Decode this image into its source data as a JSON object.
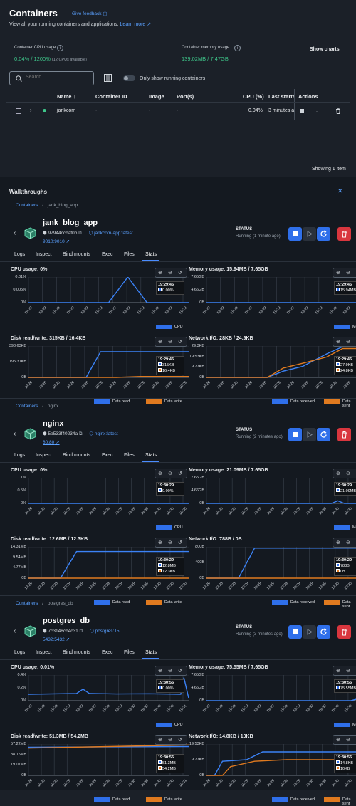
{
  "header": {
    "title": "Containers",
    "feedback": "Give feedback",
    "subtitle": "View all your running containers and applications.",
    "learn_more": "Learn more"
  },
  "cpu": {
    "label": "Container CPU usage",
    "value": "0.04% / 1200%",
    "note": "(12 CPUs available)"
  },
  "mem": {
    "label": "Container memory usage",
    "value": "139.02MB / 7.47GB"
  },
  "show_charts": "Show charts",
  "search": {
    "placeholder": "Search"
  },
  "toggle_label": "Only show running containers",
  "table": {
    "headers": [
      "Name",
      "Container ID",
      "Image",
      "Port(s)",
      "CPU (%)",
      "Last starte",
      "Actions"
    ],
    "rows": [
      {
        "name": "jankcom",
        "id": "-",
        "image": "-",
        "ports": "-",
        "cpu": "0.04%",
        "last": "3 minutes a"
      }
    ]
  },
  "showing": "Showing 1 item",
  "walkthroughs": "Walkthroughs",
  "tab_labels": [
    "Logs",
    "Inspect",
    "Bind mounts",
    "Exec",
    "Files",
    "Stats"
  ],
  "status_label": "STATUS",
  "containers": [
    {
      "crumb_root": "Containers",
      "crumb_sep": "/",
      "crumb_name": "jank_blog_app",
      "name": "jank_blog_app",
      "id": "97944ccbaf0b",
      "image": "jankcom-app:latest",
      "ports": "9010:9010",
      "status": "Running (1 minute ago)",
      "cpu": {
        "title": "CPU usage:  0%",
        "yticks": [
          "0.01%",
          "0.005%",
          "0%"
        ],
        "tip_time": "19:29:46",
        "tip_vals": [
          "0.00%"
        ],
        "legend": [
          "CPU"
        ]
      },
      "memory": {
        "title": "Memory usage:  15.94MB / 7.65GB",
        "yticks": [
          "7.65GB",
          "4.66GB",
          "0B"
        ],
        "tip_time": "19:29:46",
        "tip_vals": [
          "15.94MB"
        ],
        "legend": [
          "Memory"
        ]
      },
      "disk": {
        "title": "Disk read/write:  315KB / 16.4KB",
        "yticks": [
          "390.63KB",
          "195.31KB",
          "0B"
        ],
        "tip_time": "19:29:46",
        "tip_vals": [
          "315KB",
          "16.4KB"
        ],
        "legend": [
          "Data read",
          "Data write"
        ]
      },
      "net": {
        "title": "Network I/O:  28KB / 24.9KB",
        "yticks": [
          "29.3KB",
          "19.53KB",
          "9.77KB",
          "0B"
        ],
        "tip_time": "19:29:46",
        "tip_vals": [
          "27.9KB",
          "24.8KB"
        ],
        "legend": [
          "Data received",
          "Data sent"
        ]
      },
      "xticks": [
        "19:28",
        "19:28",
        "19:28",
        "19:28",
        "19:28",
        "19:29",
        "19:29",
        "19:29",
        "19:29",
        "19:29",
        "19:29",
        "19:29"
      ]
    },
    {
      "crumb_root": "Containers",
      "crumb_sep": "/",
      "crumb_name": "nginx",
      "name": "nginx",
      "id": "5a533f40234a",
      "image": "nginx:latest",
      "ports": "80:80",
      "status": "Running (2 minutes ago)",
      "cpu": {
        "title": "CPU usage:  0%",
        "yticks": [
          "1%",
          "0.5%",
          "0%"
        ],
        "tip_time": "19:30:29",
        "tip_vals": [
          "0.00%"
        ],
        "legend": [
          "CPU"
        ]
      },
      "memory": {
        "title": "Memory usage:  21.09MB / 7.65GB",
        "yticks": [
          "7.65GB",
          "4.66GB",
          "0B"
        ],
        "tip_time": "19:30:29",
        "tip_vals": [
          "21.09MB"
        ],
        "legend": [
          "Memory"
        ]
      },
      "disk": {
        "title": "Disk read/write:  12.6MB / 12.3KB",
        "yticks": [
          "14.31MB",
          "9.54MB",
          "4.77MB",
          "0B"
        ],
        "tip_time": "19:30:29",
        "tip_vals": [
          "12.8MB",
          "12.3KB"
        ],
        "legend": [
          "Data read",
          "Data write"
        ]
      },
      "net": {
        "title": "Network I/O:  788B / 0B",
        "yticks": [
          "800B",
          "400B",
          "0B"
        ],
        "tip_time": "19:30:29",
        "tip_vals": [
          "788B",
          "0B"
        ],
        "legend": [
          "Data received",
          "Data sent"
        ]
      },
      "xticks": [
        "19:28",
        "19:28",
        "19:28",
        "19:29",
        "19:29",
        "19:29",
        "19:29",
        "19:29",
        "19:29",
        "19:30",
        "19:30",
        "19:30",
        "19:30"
      ]
    },
    {
      "crumb_root": "Containers",
      "crumb_sep": "/",
      "crumb_name": "postgres_db",
      "name": "postgres_db",
      "id": "7c3148cb4c31",
      "image": "postgres:15",
      "ports": "5432:5432",
      "status": "Running (3 minutes ago)",
      "cpu": {
        "title": "CPU usage:  0.01%",
        "yticks": [
          "0.4%",
          "0.2%",
          "0%"
        ],
        "tip_time": "19:30:56",
        "tip_vals": [
          "0.00%"
        ],
        "legend": [
          "CPU"
        ]
      },
      "memory": {
        "title": "Memory usage:  75.55MB / 7.65GB",
        "yticks": [
          "7.65GB",
          "4.66GB",
          "0B"
        ],
        "tip_time": "19:30:56",
        "tip_vals": [
          "75.55MB"
        ],
        "legend": [
          "Memory"
        ]
      },
      "disk": {
        "title": "Disk read/write:  51.3MB / 54.2MB",
        "yticks": [
          "57.22MB",
          "38.15MB",
          "19.07MB",
          "0B"
        ],
        "tip_time": "19:30:56",
        "tip_vals": [
          "51.3MB",
          "54.2MB"
        ],
        "legend": [
          "Data read",
          "Data write"
        ]
      },
      "net": {
        "title": "Network I/O:  14.8KB / 10KB",
        "yticks": [
          "19.53KB",
          "9.77KB",
          "0B"
        ],
        "tip_time": "19:30:56",
        "tip_vals": [
          "14.8KB",
          "10KB"
        ],
        "legend": [
          "Data received",
          "Data sent"
        ]
      },
      "xticks": [
        "19:28",
        "19:28",
        "19:28",
        "19:29",
        "19:29",
        "19:29",
        "19:29",
        "19:29",
        "19:30",
        "19:30",
        "19:30",
        "19:30",
        "19:31"
      ]
    }
  ],
  "colors": {
    "blue": "#2f6fea",
    "orange": "#e07a1f",
    "accent": "#4a8cff",
    "green": "#3ec58a",
    "red": "#d9363e"
  }
}
